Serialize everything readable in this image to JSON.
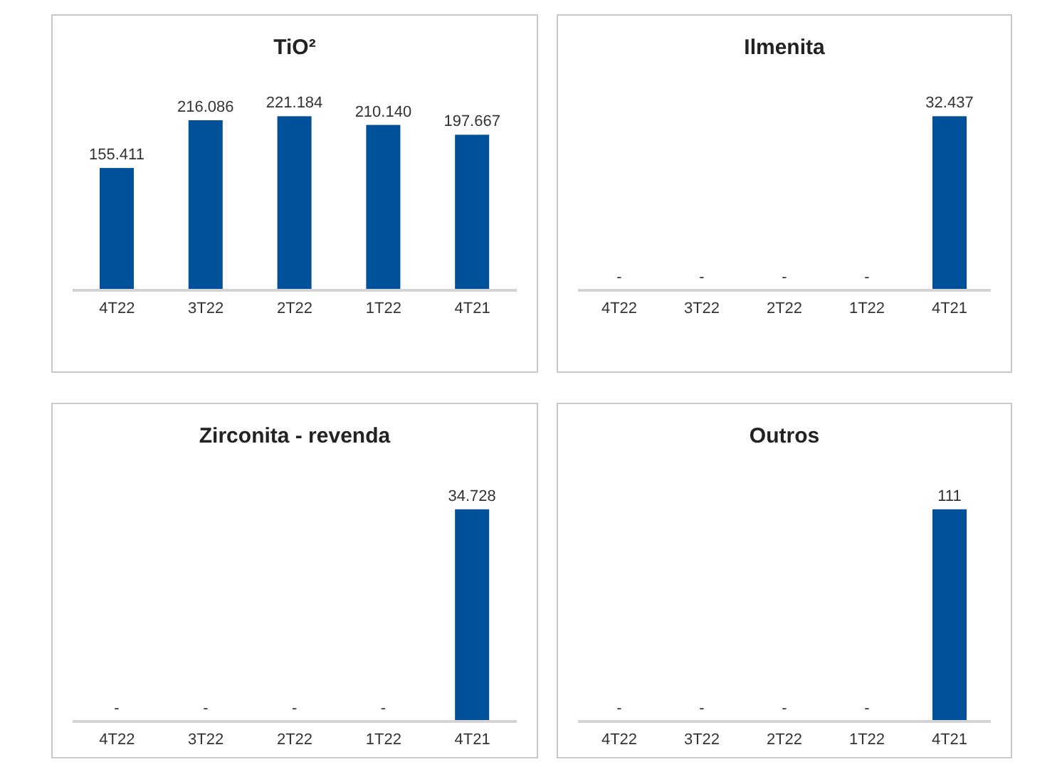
{
  "chart_data": [
    {
      "type": "bar",
      "title": "TiO²",
      "categories": [
        "4T22",
        "3T22",
        "2T22",
        "1T22",
        "4T21"
      ],
      "values": [
        155411,
        216086,
        221184,
        210140,
        197667
      ],
      "value_labels": [
        "155.411",
        "216.086",
        "221.184",
        "210.140",
        "197.667"
      ],
      "color": "#00519a",
      "tick_labels": "x",
      "grid": false,
      "legend": false
    },
    {
      "type": "bar",
      "title": "Ilmenita",
      "categories": [
        "4T22",
        "3T22",
        "2T22",
        "1T22",
        "4T21"
      ],
      "values": [
        0,
        0,
        0,
        0,
        32437
      ],
      "value_labels": [
        "-",
        "-",
        "-",
        "-",
        "32.437"
      ],
      "color": "#00519a",
      "tick_labels": "x",
      "grid": false,
      "legend": false
    },
    {
      "type": "bar",
      "title": "Zirconita - revenda",
      "categories": [
        "4T22",
        "3T22",
        "2T22",
        "1T22",
        "4T21"
      ],
      "values": [
        0,
        0,
        0,
        0,
        34728
      ],
      "value_labels": [
        "-",
        "-",
        "-",
        "-",
        "34.728"
      ],
      "color": "#00519a",
      "tick_labels": "x",
      "grid": false,
      "legend": false
    },
    {
      "type": "bar",
      "title": "Outros",
      "categories": [
        "4T22",
        "3T22",
        "2T22",
        "1T22",
        "4T21"
      ],
      "values": [
        0,
        0,
        0,
        0,
        111
      ],
      "value_labels": [
        "-",
        "-",
        "-",
        "-",
        "111"
      ],
      "color": "#00519a",
      "tick_labels": "x",
      "grid": false,
      "legend": false
    }
  ]
}
